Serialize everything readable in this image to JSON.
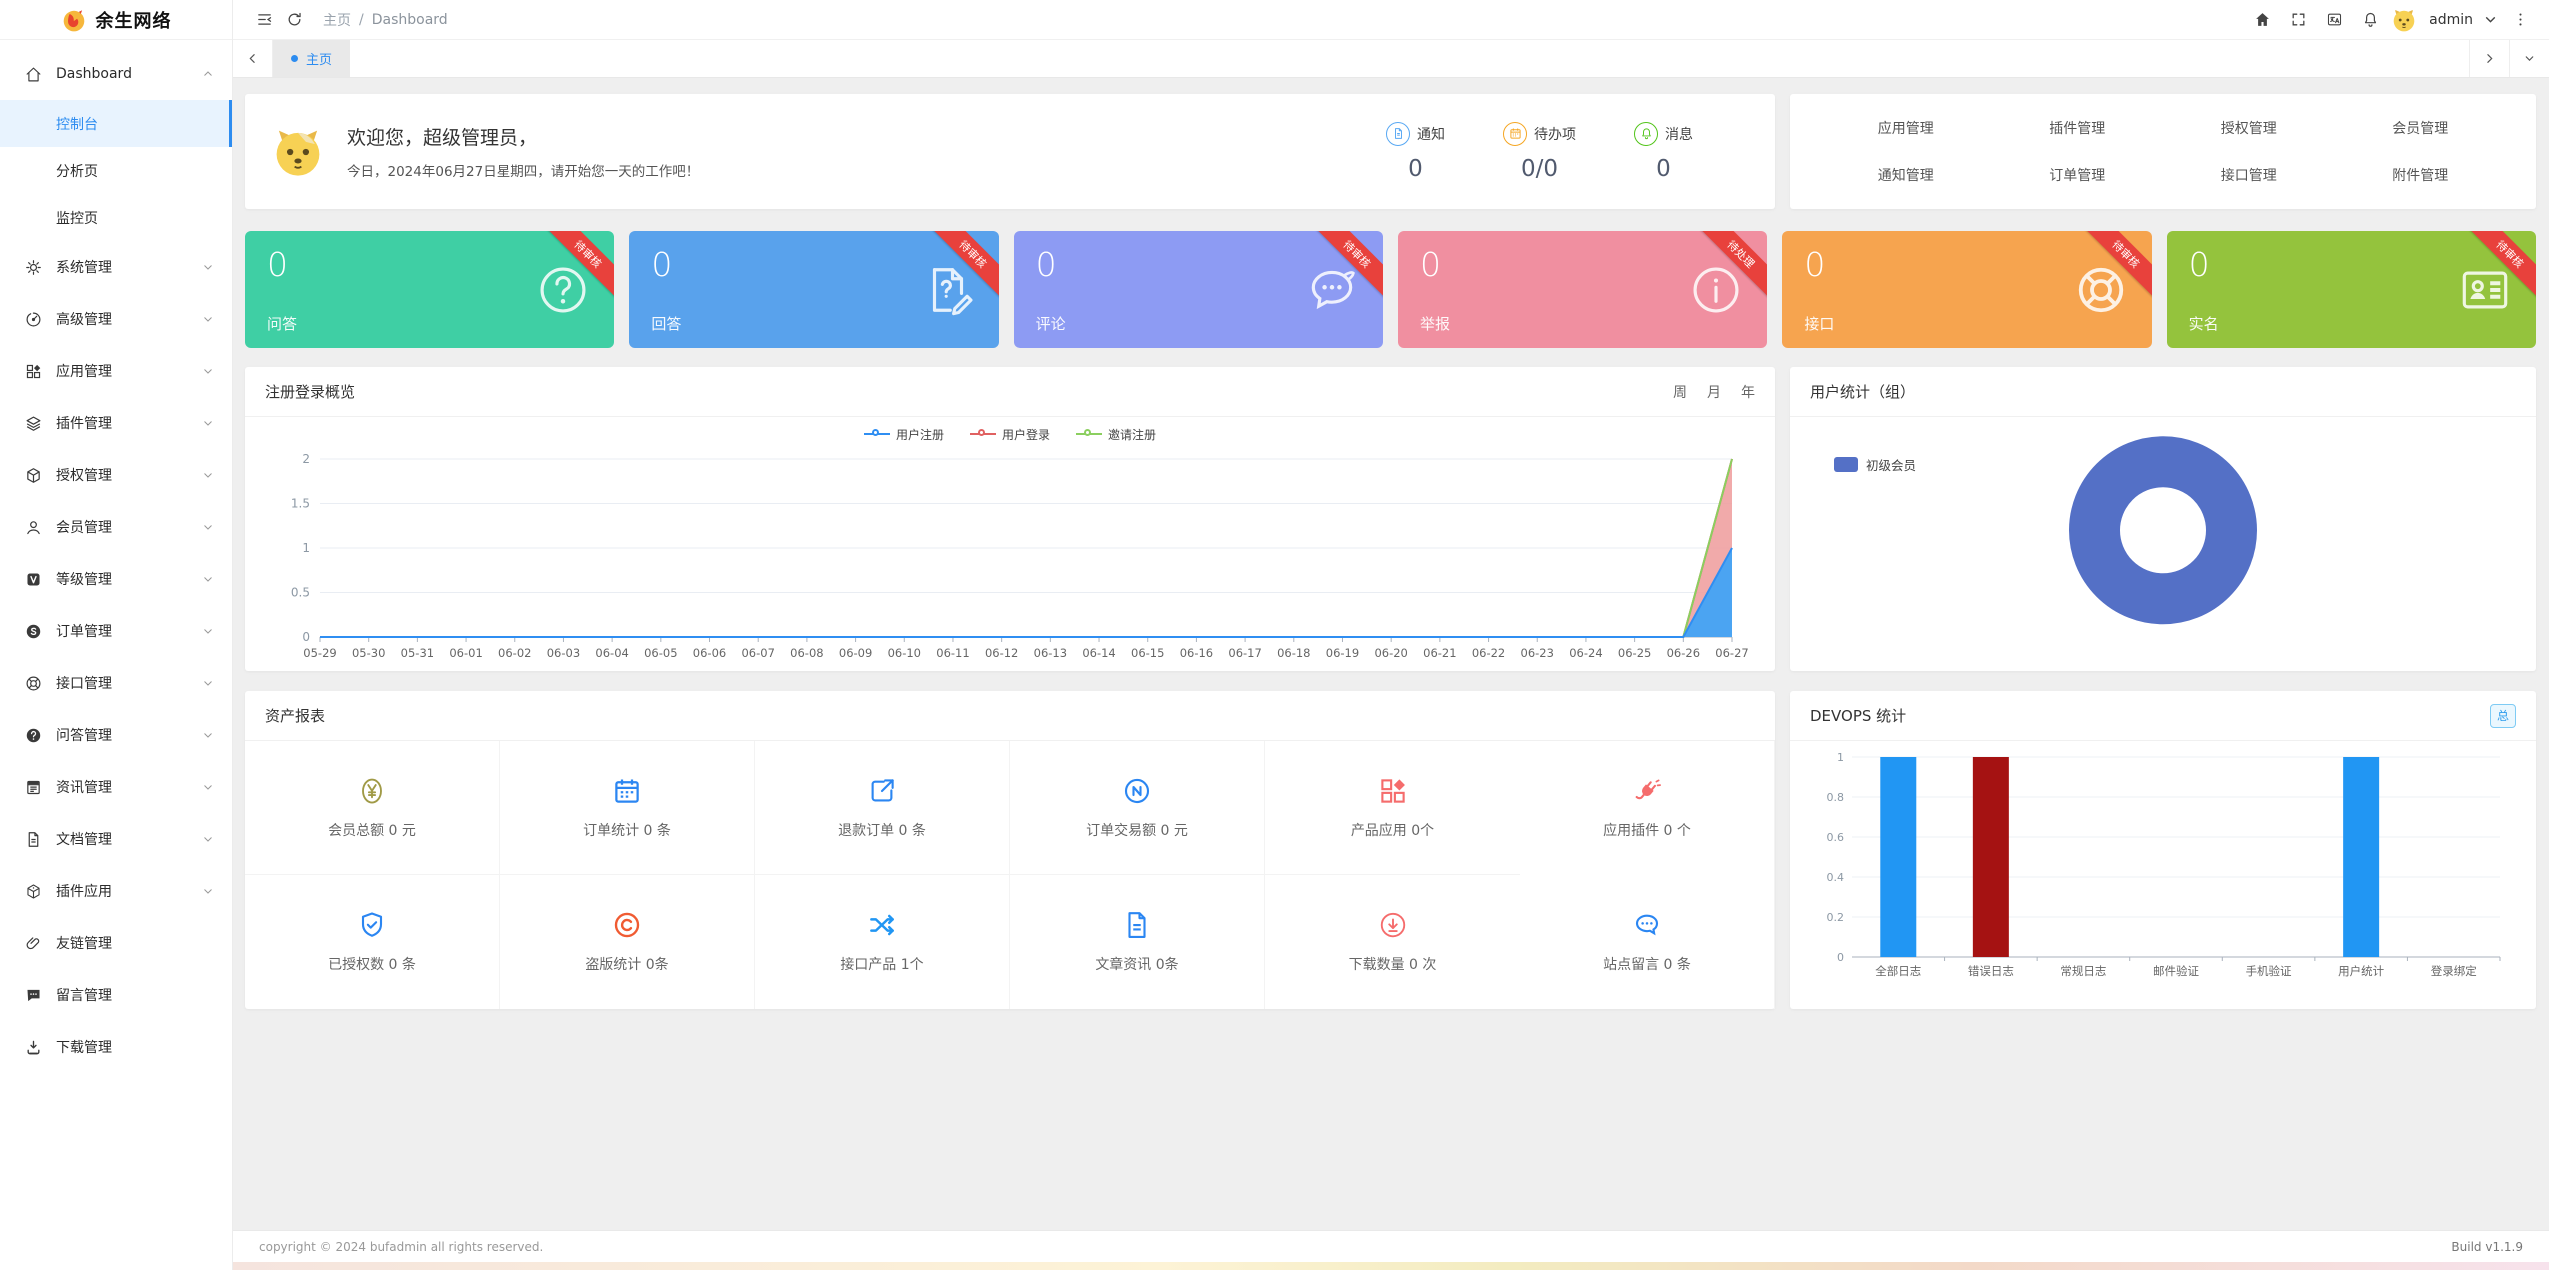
{
  "brand": {
    "name": "余生网络"
  },
  "topbar": {
    "breadcrumb": {
      "home": "主页",
      "separator": "/",
      "current": "Dashboard"
    },
    "user": "admin"
  },
  "tabbar": {
    "active_tab": "主页"
  },
  "sidebar": {
    "dashboard": {
      "label": "Dashboard",
      "children": [
        {
          "label": "控制台",
          "active": true
        },
        {
          "label": "分析页",
          "active": false
        },
        {
          "label": "监控页",
          "active": false
        }
      ]
    },
    "items": [
      {
        "icon": "gear",
        "label": "系统管理",
        "expandable": true
      },
      {
        "icon": "gauge",
        "label": "高级管理",
        "expandable": true
      },
      {
        "icon": "app-grid",
        "label": "应用管理",
        "expandable": true
      },
      {
        "icon": "layers",
        "label": "插件管理",
        "expandable": true
      },
      {
        "icon": "cube",
        "label": "授权管理",
        "expandable": true
      },
      {
        "icon": "user",
        "label": "会员管理",
        "expandable": true
      },
      {
        "icon": "v-badge",
        "label": "等级管理",
        "expandable": true
      },
      {
        "icon": "s-badge",
        "label": "订单管理",
        "expandable": true
      },
      {
        "icon": "life-ring",
        "label": "接口管理",
        "expandable": true
      },
      {
        "icon": "question",
        "label": "问答管理",
        "expandable": true
      },
      {
        "icon": "news",
        "label": "资讯管理",
        "expandable": true
      },
      {
        "icon": "doc",
        "label": "文档管理",
        "expandable": true
      },
      {
        "icon": "box3d",
        "label": "插件应用",
        "expandable": true
      },
      {
        "icon": "paperclip",
        "label": "友链管理",
        "expandable": false
      },
      {
        "icon": "comment",
        "label": "留言管理",
        "expandable": false
      },
      {
        "icon": "download",
        "label": "下载管理",
        "expandable": false
      }
    ]
  },
  "welcome": {
    "greeting": "欢迎您，超级管理员，",
    "subtitle": "今日，2024年06月27日星期四，请开始您一天的工作吧！",
    "counters": [
      {
        "icon": "file",
        "label": "通知",
        "value": "0",
        "color": "#58a8f3"
      },
      {
        "icon": "calendar",
        "label": "待办项",
        "value": "0/0",
        "color": "#f5a623"
      },
      {
        "icon": "bell",
        "label": "消息",
        "value": "0",
        "color": "#52c41a"
      }
    ]
  },
  "quicklinks": [
    {
      "label": "应用管理"
    },
    {
      "label": "插件管理"
    },
    {
      "label": "授权管理"
    },
    {
      "label": "会员管理"
    },
    {
      "label": "通知管理"
    },
    {
      "label": "订单管理"
    },
    {
      "label": "接口管理"
    },
    {
      "label": "附件管理"
    }
  ],
  "stat_cards": [
    {
      "value": "0",
      "label": "问答",
      "icon": "question-circle",
      "color": "#3fcfa4",
      "ribbon": "待审核"
    },
    {
      "value": "0",
      "label": "回答",
      "icon": "file-pen",
      "color": "#59a2ec",
      "ribbon": "待审核"
    },
    {
      "value": "0",
      "label": "评论",
      "icon": "comment-dots",
      "color": "#8d9bf3",
      "ribbon": "待审核"
    },
    {
      "value": "0",
      "label": "举报",
      "icon": "info-circle",
      "color": "#f08fa0",
      "ribbon": "待处理"
    },
    {
      "value": "0",
      "label": "接口",
      "icon": "life-ring",
      "color": "#f6a44f",
      "ribbon": "待审核"
    },
    {
      "value": "0",
      "label": "实名",
      "icon": "id-card",
      "color": "#94c33d",
      "ribbon": "待审核"
    }
  ],
  "overview_panel": {
    "title": "注册登录概览",
    "ranges": [
      {
        "label": "周"
      },
      {
        "label": "月"
      },
      {
        "label": "年"
      }
    ]
  },
  "user_stats_panel": {
    "title": "用户统计（组）",
    "legend": "初级会员",
    "color": "#5470c6"
  },
  "assets_panel": {
    "title": "资产报表",
    "items": [
      {
        "icon": "yen",
        "color": "#a09a46",
        "label": "会员总额 0 元"
      },
      {
        "icon": "calendar",
        "color": "#2b86f2",
        "label": "订单统计 0 条"
      },
      {
        "icon": "share",
        "color": "#2b86f2",
        "label": "退款订单 0 条"
      },
      {
        "icon": "alipay",
        "color": "#2b86f2",
        "label": "订单交易额 0 元"
      },
      {
        "icon": "app-grid",
        "color": "#f56c6c",
        "label": "产品应用 0个"
      },
      {
        "icon": "plug",
        "color": "#f56c6c",
        "label": "应用插件 0 个"
      },
      {
        "icon": "shield-check",
        "color": "#2b86f2",
        "label": "已授权数 0 条"
      },
      {
        "icon": "copyright",
        "color": "#f05b32",
        "label": "盗版统计 0条"
      },
      {
        "icon": "shuffle",
        "color": "#2196f3",
        "label": "接口产品 1个"
      },
      {
        "icon": "doc",
        "color": "#2b86f2",
        "label": "文章资讯 0条"
      },
      {
        "icon": "download-circle",
        "color": "#f56c6c",
        "label": "下载数量 0 次"
      },
      {
        "icon": "message",
        "color": "#2b86f2",
        "label": "站点留言 0 条"
      }
    ]
  },
  "devops_panel": {
    "title": "DEVOPS 统计",
    "badge": "总"
  },
  "footer": {
    "copyright": "copyright © 2024 bufadmin all rights reserved.",
    "build": "Build v1.1.9"
  },
  "chart_data": [
    {
      "type": "line",
      "title": "注册登录概览",
      "categories": [
        "05-29",
        "05-30",
        "05-31",
        "06-01",
        "06-02",
        "06-03",
        "06-04",
        "06-05",
        "06-06",
        "06-07",
        "06-08",
        "06-09",
        "06-10",
        "06-11",
        "06-12",
        "06-13",
        "06-14",
        "06-15",
        "06-16",
        "06-17",
        "06-18",
        "06-19",
        "06-20",
        "06-21",
        "06-22",
        "06-23",
        "06-24",
        "06-25",
        "06-26",
        "06-27"
      ],
      "series": [
        {
          "name": "用户注册",
          "color": "#2f8ef2",
          "fill": "#4ba4f2",
          "values": [
            0,
            0,
            0,
            0,
            0,
            0,
            0,
            0,
            0,
            0,
            0,
            0,
            0,
            0,
            0,
            0,
            0,
            0,
            0,
            0,
            0,
            0,
            0,
            0,
            0,
            0,
            0,
            0,
            0,
            1
          ]
        },
        {
          "name": "用户登录",
          "color": "#e06161",
          "fill": "#ef9b9b",
          "values": [
            0,
            0,
            0,
            0,
            0,
            0,
            0,
            0,
            0,
            0,
            0,
            0,
            0,
            0,
            0,
            0,
            0,
            0,
            0,
            0,
            0,
            0,
            0,
            0,
            0,
            0,
            0,
            0,
            0,
            2
          ]
        },
        {
          "name": "邀请注册",
          "color": "#8bcf5f",
          "fill": "none",
          "values": [
            0,
            0,
            0,
            0,
            0,
            0,
            0,
            0,
            0,
            0,
            0,
            0,
            0,
            0,
            0,
            0,
            0,
            0,
            0,
            0,
            0,
            0,
            0,
            0,
            0,
            0,
            0,
            0,
            0,
            2
          ]
        }
      ],
      "ylim": [
        0,
        2
      ],
      "yticks": [
        0,
        0.5,
        1,
        1.5,
        2
      ],
      "legend_position": "top",
      "grid": true
    },
    {
      "type": "pie",
      "title": "用户统计（组）",
      "labels": [
        "初级会员"
      ],
      "values": [
        1
      ],
      "colors": [
        "#5470c6"
      ],
      "donut": true,
      "legend_position": "left"
    },
    {
      "type": "bar",
      "title": "DEVOPS 统计",
      "categories": [
        "全部日志",
        "错误日志",
        "常规日志",
        "邮件验证",
        "手机验证",
        "用户统计",
        "登录绑定"
      ],
      "values": [
        1,
        1,
        0,
        0,
        0,
        1,
        0
      ],
      "colors": [
        "#2196f3",
        "#a51212",
        "#2196f3",
        "#2196f3",
        "#2196f3",
        "#2196f3",
        "#2196f3"
      ],
      "ylim": [
        0,
        1
      ],
      "yticks": [
        0,
        0.2,
        0.4,
        0.6,
        0.8,
        1
      ],
      "grid": true
    }
  ]
}
